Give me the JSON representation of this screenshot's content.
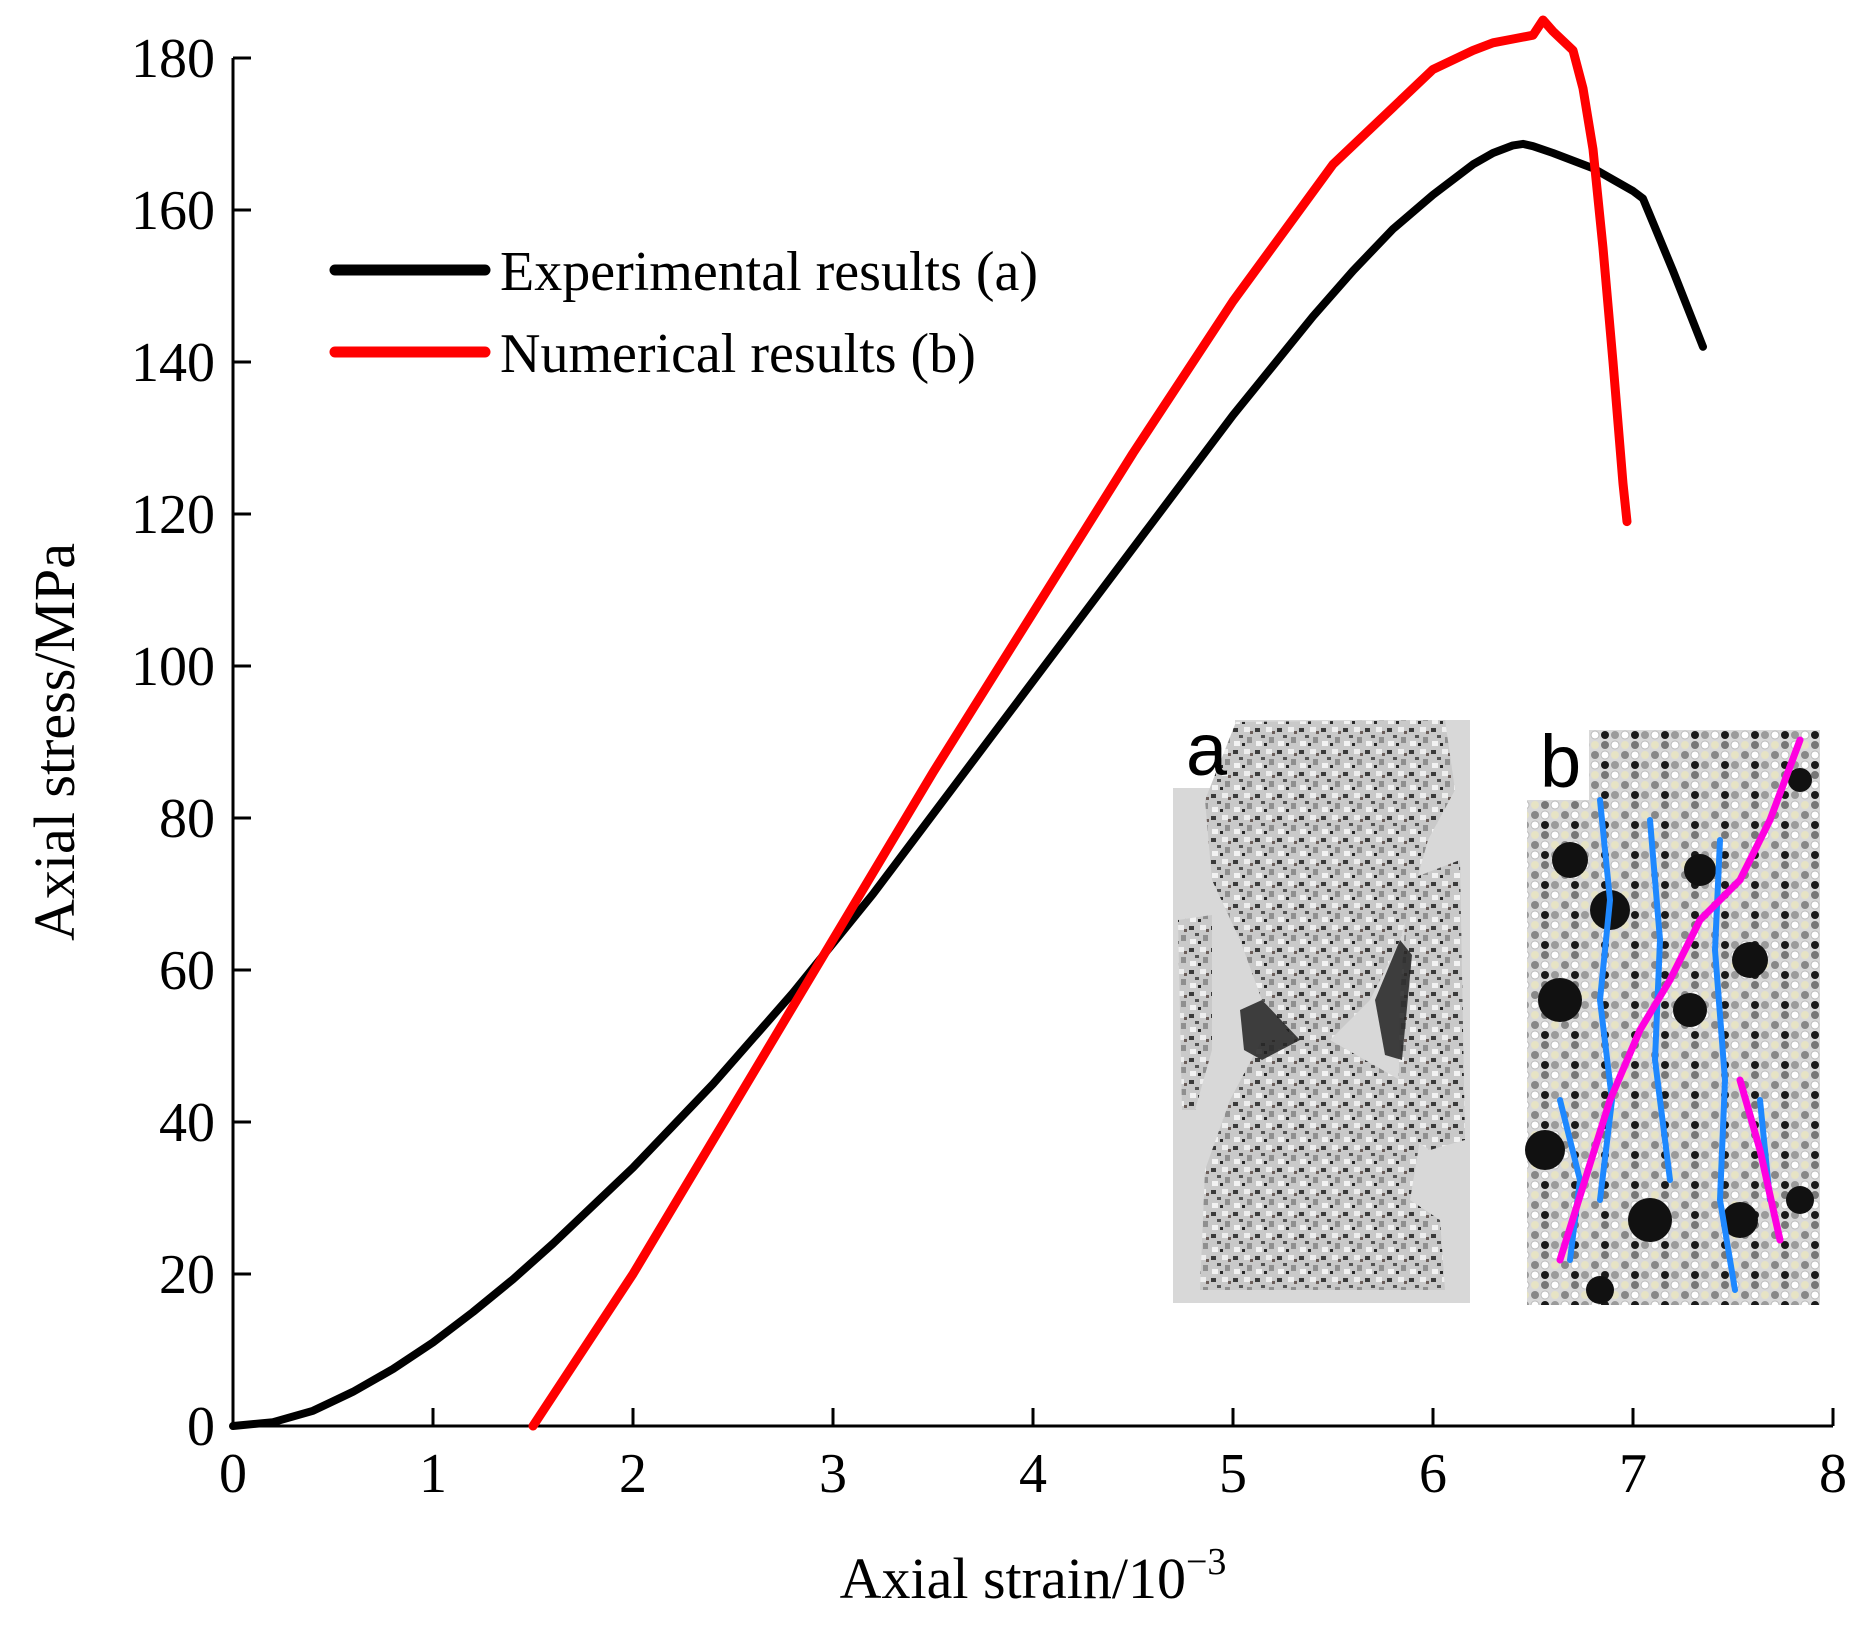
{
  "chart_data": {
    "type": "line",
    "title": "",
    "xlabel": "Axial strain/10",
    "xlabel_exponent": "−3",
    "ylabel": "Axial stress/MPa",
    "xlim": [
      0,
      8
    ],
    "ylim": [
      0,
      180
    ],
    "x_ticks": [
      0,
      1,
      2,
      3,
      4,
      5,
      6,
      7,
      8
    ],
    "y_ticks": [
      0,
      20,
      40,
      60,
      80,
      100,
      120,
      140,
      160,
      180
    ],
    "x_tick_labels": [
      "0",
      "1",
      "2",
      "3",
      "4",
      "5",
      "6",
      "7",
      "8"
    ],
    "y_tick_labels": [
      "0",
      "20",
      "40",
      "60",
      "80",
      "100",
      "120",
      "140",
      "160",
      "180"
    ],
    "grid": false,
    "legend_position": "top-left",
    "series": [
      {
        "name": "Experimental results (a)",
        "color": "#000000",
        "x": [
          0,
          0.2,
          0.4,
          0.6,
          0.8,
          1.0,
          1.2,
          1.4,
          1.6,
          1.8,
          2.0,
          2.2,
          2.4,
          2.6,
          2.8,
          3.0,
          3.2,
          3.4,
          3.6,
          3.8,
          4.0,
          4.2,
          4.4,
          4.6,
          4.8,
          5.0,
          5.2,
          5.4,
          5.6,
          5.8,
          6.0,
          6.2,
          6.3,
          6.4,
          6.45,
          6.5,
          6.6,
          6.7,
          6.8,
          6.9,
          7.0,
          7.05,
          7.2,
          7.35
        ],
        "y": [
          0,
          0.5,
          2,
          4.5,
          7.5,
          11,
          15,
          19.3,
          24,
          29,
          34,
          39.5,
          45,
          51,
          57,
          63.5,
          70,
          77,
          84,
          91,
          98,
          105,
          112,
          119,
          126,
          133,
          139.5,
          146,
          152,
          157.5,
          162,
          166,
          167.5,
          168.5,
          168.7,
          168.4,
          167.5,
          166.5,
          165.5,
          164,
          162.5,
          161.5,
          152,
          142
        ]
      },
      {
        "name": "Numerical results (b)",
        "color": "#ff0000",
        "x": [
          1.5,
          2.0,
          2.5,
          3.0,
          3.5,
          4.0,
          4.5,
          5.0,
          5.5,
          6.0,
          6.2,
          6.3,
          6.4,
          6.5,
          6.55,
          6.6,
          6.7,
          6.75,
          6.8,
          6.85,
          6.9,
          6.95,
          6.97
        ],
        "y": [
          0,
          20,
          42,
          64,
          86,
          107,
          128,
          148,
          166,
          178.5,
          181,
          182,
          182.5,
          183,
          185,
          183.5,
          181,
          176,
          168,
          155,
          140,
          124,
          119
        ]
      }
    ],
    "inset_labels": [
      "a",
      "b"
    ]
  }
}
